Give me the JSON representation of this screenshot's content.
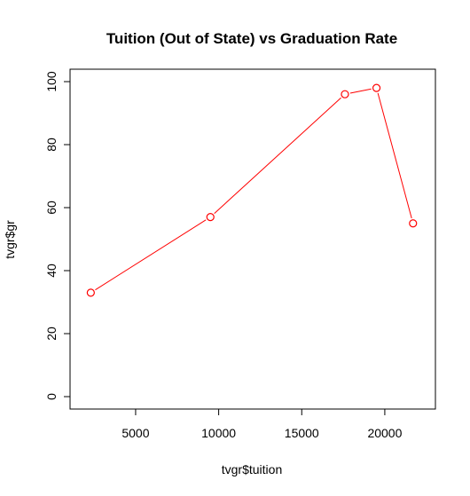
{
  "chart_data": {
    "type": "line",
    "title": "Tuition (Out of State) vs Graduation Rate",
    "xlabel": "tvgr$tuition",
    "ylabel": "tvgr$gr",
    "xlim": [
      1800,
      22300
    ],
    "ylim": [
      0,
      100
    ],
    "x_ticks": [
      5000,
      10000,
      15000,
      20000
    ],
    "y_ticks": [
      0,
      20,
      40,
      60,
      80,
      100
    ],
    "grid": false,
    "series": [
      {
        "x": [
          2300,
          9500,
          17600,
          19500,
          21700
        ],
        "y": [
          33,
          57,
          96,
          98,
          55
        ],
        "color": "#ff0000",
        "marker": "open-circle"
      }
    ]
  }
}
